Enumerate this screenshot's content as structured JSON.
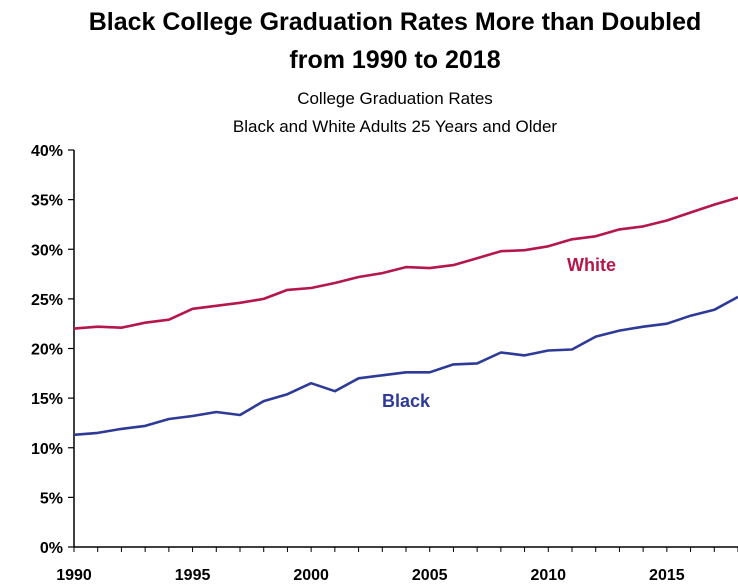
{
  "chart_data": {
    "type": "line",
    "title": "Black College Graduation Rates More than Doubled",
    "title_line2": "from 1990 to 2018",
    "subtitle": "College Graduation Rates",
    "subtitle_line2": "Black and White Adults 25 Years and Older",
    "xlabel": "",
    "ylabel": "",
    "xlim": [
      1990,
      2018
    ],
    "ylim": [
      0,
      40
    ],
    "x_ticks": [
      1990,
      1995,
      2000,
      2005,
      2010,
      2015
    ],
    "x_tick_labels": [
      "1990",
      "1995",
      "2000",
      "2005",
      "2010",
      "2015"
    ],
    "y_ticks": [
      0,
      5,
      10,
      15,
      20,
      25,
      30,
      35,
      40
    ],
    "y_tick_labels": [
      "0%",
      "5%",
      "10%",
      "15%",
      "20%",
      "25%",
      "30%",
      "35%",
      "40%"
    ],
    "grid": false,
    "legend": "none (series labeled inline)",
    "x": [
      1990,
      1991,
      1992,
      1993,
      1994,
      1995,
      1996,
      1997,
      1998,
      1999,
      2000,
      2001,
      2002,
      2003,
      2004,
      2005,
      2006,
      2007,
      2008,
      2009,
      2010,
      2011,
      2012,
      2013,
      2014,
      2015,
      2016,
      2017,
      2018
    ],
    "series": [
      {
        "name": "White",
        "color": "#b5174a",
        "values": [
          22.0,
          22.2,
          22.1,
          22.6,
          22.9,
          24.0,
          24.3,
          24.6,
          25.0,
          25.9,
          26.1,
          26.6,
          27.2,
          27.6,
          28.2,
          28.1,
          28.4,
          29.1,
          29.8,
          29.9,
          30.3,
          31.0,
          31.3,
          32.0,
          32.3,
          32.9,
          33.7,
          34.5,
          35.2
        ]
      },
      {
        "name": "Black",
        "color": "#2e3a97",
        "values": [
          11.3,
          11.5,
          11.9,
          12.2,
          12.9,
          13.2,
          13.6,
          13.3,
          14.7,
          15.4,
          16.5,
          15.7,
          17.0,
          17.3,
          17.6,
          17.6,
          18.4,
          18.5,
          19.6,
          19.3,
          19.8,
          19.9,
          21.2,
          21.8,
          22.2,
          22.5,
          23.3,
          23.9,
          25.2
        ]
      }
    ]
  }
}
